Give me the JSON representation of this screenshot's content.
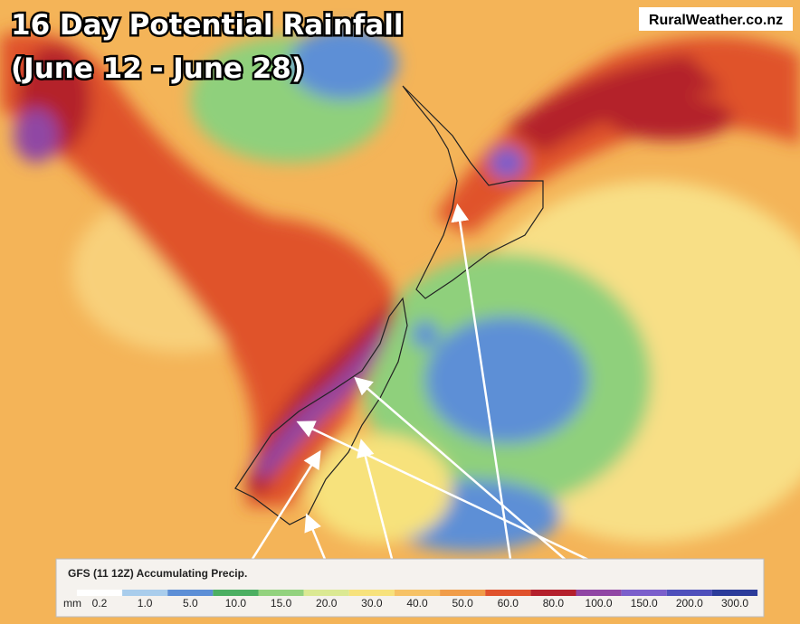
{
  "header": {
    "title_lines": [
      "16 Day Potential Rainfall",
      "(June 12 - June 28)"
    ],
    "watermark": "RuralWeather.co.nz"
  },
  "legend": {
    "title": "GFS (11 12Z) Accumulating Precip.",
    "unit": "mm",
    "stops": [
      {
        "label": "0.2",
        "color": "#ffffff"
      },
      {
        "label": "1.0",
        "color": "#a9cdec"
      },
      {
        "label": "5.0",
        "color": "#5d8fd6"
      },
      {
        "label": "10.0",
        "color": "#4caf62"
      },
      {
        "label": "15.0",
        "color": "#93d27e"
      },
      {
        "label": "20.0",
        "color": "#dbe993"
      },
      {
        "label": "30.0",
        "color": "#f7e27c"
      },
      {
        "label": "40.0",
        "color": "#f6c266"
      },
      {
        "label": "50.0",
        "color": "#f09c48"
      },
      {
        "label": "60.0",
        "color": "#e0522c"
      },
      {
        "label": "80.0",
        "color": "#b4202c"
      },
      {
        "label": "100.0",
        "color": "#9046a4"
      },
      {
        "label": "150.0",
        "color": "#7b5fcb"
      },
      {
        "label": "200.0",
        "color": "#4f50bb"
      },
      {
        "label": "300.0",
        "color": "#2c3c9a"
      }
    ]
  }
}
